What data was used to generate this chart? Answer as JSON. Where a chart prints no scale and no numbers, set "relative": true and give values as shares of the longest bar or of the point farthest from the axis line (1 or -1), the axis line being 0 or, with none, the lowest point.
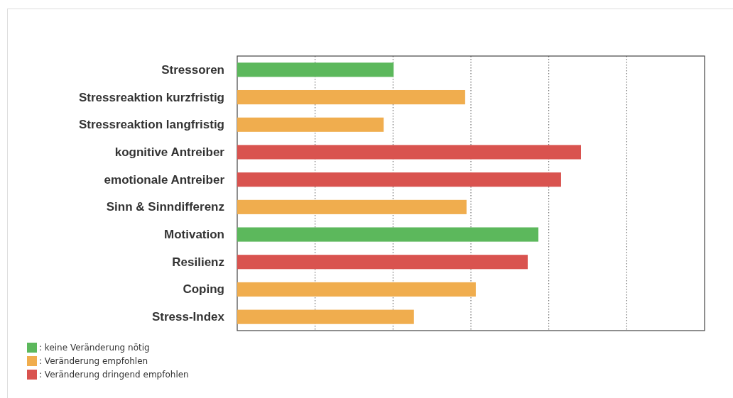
{
  "chart_data": {
    "type": "bar",
    "orientation": "horizontal",
    "relative": true,
    "grid": "x",
    "legend": "bottom left",
    "categories": [
      "Stressoren",
      "Stressreaktion kurzfristig",
      "Stressreaktion langfristig",
      "kognitive Antreiber",
      "emotionale Antreiber",
      "Sinn & Sinndifferenz",
      "Motivation",
      "Resilienz",
      "Coping",
      "Stress-Index"
    ],
    "series": [
      {
        "name": ": keine Veränderung nötig",
        "color": "#5cb85c",
        "values": [
          0.455,
          null,
          null,
          null,
          null,
          null,
          0.876,
          null,
          null,
          null
        ]
      },
      {
        "name": ": Veränderung empfohlen",
        "color": "#f0ad4e",
        "values": [
          null,
          0.663,
          0.426,
          null,
          null,
          0.667,
          null,
          null,
          0.694,
          0.514
        ]
      },
      {
        "name": ": Veränderung dringend empfohlen",
        "color": "#d9534f",
        "values": [
          null,
          null,
          null,
          1,
          0.942,
          null,
          null,
          0.845,
          null,
          null
        ]
      }
    ]
  }
}
